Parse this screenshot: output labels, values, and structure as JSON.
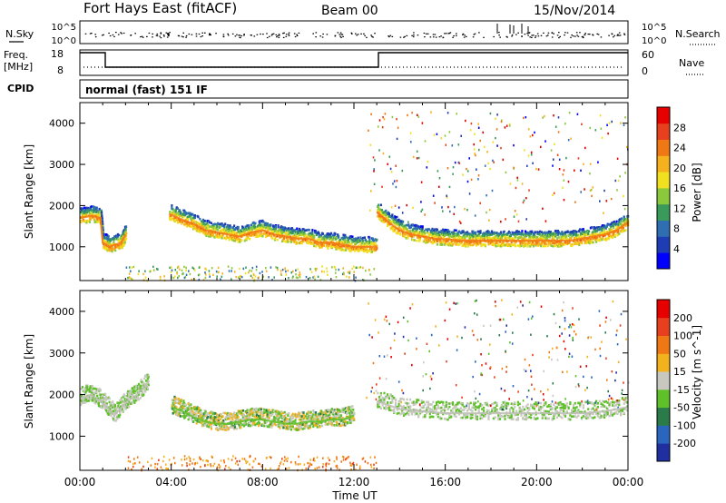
{
  "header": {
    "station": "Fort Hays East (fitACF)",
    "beam": "Beam 00",
    "date": "15/Nov/2014"
  },
  "strip_labels": {
    "nsky": "N.Sky",
    "nsky_ticks": [
      "10^5",
      "10^0"
    ],
    "nsearch": "N.Search",
    "nsearch_ticks": [
      "10^5",
      "10^0"
    ],
    "freq_line1": "Freq.",
    "freq_line2": "[MHz]",
    "freq_ticks": [
      "18",
      "8"
    ],
    "nave": "Nave",
    "nave_ticks": [
      "60",
      "0"
    ],
    "cpid": "CPID",
    "cpid_value": "normal (fast) 151 IF"
  },
  "chart_data": [
    {
      "type": "line",
      "title": "",
      "xlabel": "Time UT",
      "ylabel": "Slant Range [km]",
      "x_ticks": [
        "00:00",
        "04:00",
        "08:00",
        "12:00",
        "16:00",
        "20:00",
        "00:00"
      ],
      "y_ticks": [
        1000,
        2000,
        3000,
        4000
      ],
      "ylim": [
        180,
        4500
      ],
      "series": [
        {
          "x": [
            0.0,
            0.5,
            0.9,
            1.0,
            1.3,
            1.8,
            2.0
          ],
          "y": [
            1700,
            1750,
            1700,
            1100,
            1000,
            1100,
            1300
          ]
        },
        {
          "x": [
            3.9,
            4.5,
            5.0,
            5.5,
            6.0,
            6.5,
            7.0,
            7.5,
            8.0,
            8.5,
            9.0,
            9.5,
            10.0,
            10.5,
            11.0,
            11.5,
            12.0,
            12.5,
            13.0
          ],
          "y": [
            1800,
            1650,
            1550,
            1400,
            1350,
            1300,
            1250,
            1350,
            1400,
            1300,
            1250,
            1200,
            1200,
            1100,
            1100,
            1050,
            1000,
            1000,
            1000
          ]
        },
        {
          "x": [
            13.0,
            13.5,
            14.0,
            14.5,
            15.0,
            15.5,
            16.0,
            16.5,
            17.0,
            17.5,
            18.0,
            18.5,
            19.0,
            19.5,
            20.0,
            20.5,
            21.0,
            21.5,
            22.0,
            22.5,
            23.0,
            23.5,
            24.0
          ],
          "y": [
            1850,
            1600,
            1400,
            1300,
            1250,
            1200,
            1180,
            1160,
            1150,
            1150,
            1150,
            1150,
            1150,
            1150,
            1150,
            1150,
            1150,
            1150,
            1200,
            1250,
            1300,
            1400,
            1600
          ]
        }
      ],
      "colorbar": {
        "label": "Power [dB]",
        "ticks": [
          "4",
          "8",
          "12",
          "16",
          "20",
          "24",
          "28"
        ],
        "colors": [
          "#0000ff",
          "#1e3cb4",
          "#2f6eb0",
          "#3a9a5a",
          "#8cc83c",
          "#f0e020",
          "#f5b21e",
          "#f07814",
          "#e6401e",
          "#e60000"
        ]
      }
    },
    {
      "type": "line",
      "title": "",
      "xlabel": "Time UT",
      "ylabel": "Slant Range [km]",
      "x_ticks": [
        "00:00",
        "04:00",
        "08:00",
        "12:00",
        "16:00",
        "20:00",
        "00:00"
      ],
      "y_ticks": [
        1000,
        2000,
        3000,
        4000
      ],
      "ylim": [
        180,
        4500
      ],
      "series": [
        {
          "x": [
            0.0,
            0.5,
            1.0,
            1.5,
            2.0,
            2.5,
            3.0
          ],
          "y": [
            1900,
            2000,
            1800,
            1500,
            1800,
            2000,
            2300
          ]
        },
        {
          "x": [
            4.0,
            4.5,
            5.0,
            5.5,
            6.0,
            6.5,
            7.0,
            7.5,
            8.0,
            8.5,
            9.0,
            9.5,
            10.0,
            10.5,
            11.0,
            11.5,
            12.0
          ],
          "y": [
            1700,
            1600,
            1450,
            1350,
            1300,
            1300,
            1350,
            1400,
            1400,
            1350,
            1300,
            1300,
            1350,
            1350,
            1400,
            1400,
            1500
          ]
        },
        {
          "x": [
            13.0,
            14.0,
            15.0,
            16.0,
            17.0,
            18.0,
            19.0,
            20.0,
            21.0,
            22.0,
            23.0,
            24.0
          ],
          "y": [
            1850,
            1650,
            1600,
            1550,
            1550,
            1550,
            1550,
            1550,
            1550,
            1550,
            1600,
            1700
          ]
        }
      ],
      "colorbar": {
        "label": "Velocity [m s^-1]",
        "ticks": [
          "200",
          "100",
          "50",
          "15",
          "-15",
          "-50",
          "-100",
          "-200"
        ],
        "colors": [
          "#1f2fa0",
          "#2a66c0",
          "#2a7a4a",
          "#5fc02a",
          "#c8c8c0",
          "#f2b21e",
          "#f07814",
          "#e8401e",
          "#e60000"
        ]
      }
    }
  ]
}
